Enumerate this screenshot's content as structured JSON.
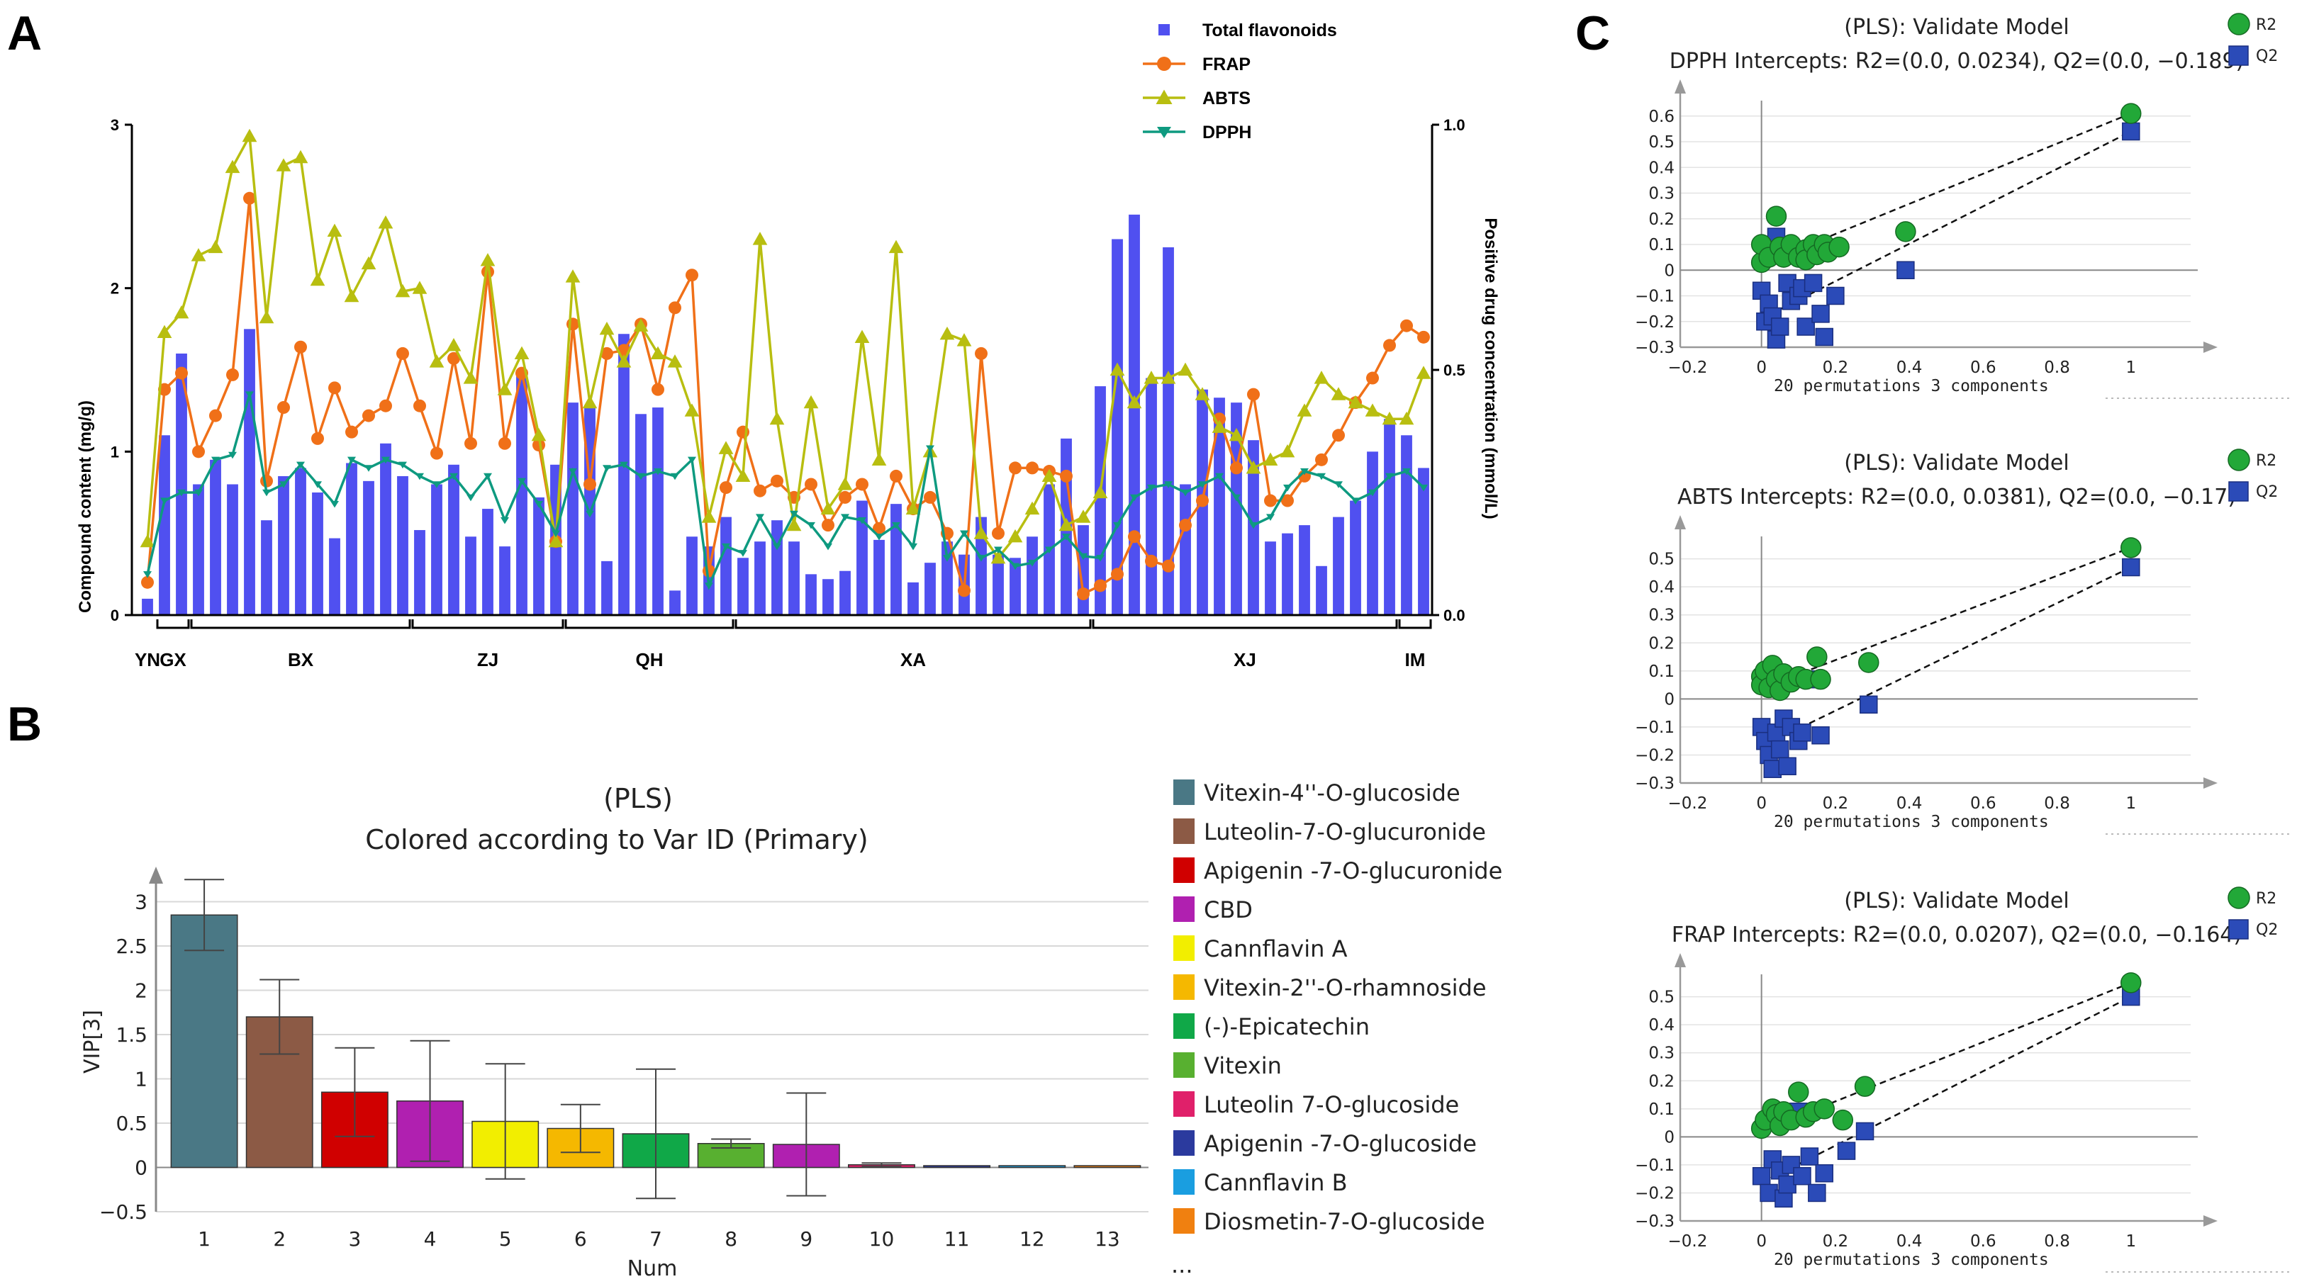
{
  "panel_labels": [
    "A",
    "B",
    "C"
  ],
  "chart_data": [
    {
      "type": "bar+line",
      "panel": "A",
      "ylabel": "Compound content (mg/g)",
      "ylabel_right": "Positive drug concentration (mmol/L)",
      "y_ticks": [
        "0",
        "1",
        "2",
        "3"
      ],
      "y_right_ticks": [
        "0.0",
        "0.5",
        "1.0"
      ],
      "ylim": [
        0,
        3
      ],
      "ylim_right": [
        0,
        1
      ],
      "legend": [
        {
          "name": "Total flavonoids",
          "color": "#5050F0",
          "marker": "square"
        },
        {
          "name": "FRAP",
          "color": "#F07018",
          "marker": "circle"
        },
        {
          "name": "ABTS",
          "color": "#B8BE10",
          "marker": "triangle"
        },
        {
          "name": "DPPH",
          "color": "#0E9A80",
          "marker": "triangle-down"
        }
      ],
      "groups": [
        {
          "name": "YN",
          "from": 1,
          "to": 1
        },
        {
          "name": "GX",
          "from": 2,
          "to": 3
        },
        {
          "name": "BX",
          "from": 4,
          "to": 16
        },
        {
          "name": "ZJ",
          "from": 17,
          "to": 25
        },
        {
          "name": "QH",
          "from": 26,
          "to": 35
        },
        {
          "name": "XA",
          "from": 36,
          "to": 56
        },
        {
          "name": "XJ",
          "from": 57,
          "to": 74
        },
        {
          "name": "IM",
          "from": 75,
          "to": 76
        }
      ],
      "series": [
        {
          "name": "Total flavonoids",
          "axis": "left",
          "values": [
            0.1,
            1.1,
            1.6,
            0.8,
            0.95,
            0.8,
            1.75,
            0.58,
            0.85,
            0.9,
            0.75,
            0.47,
            0.93,
            0.82,
            1.05,
            0.85,
            0.52,
            0.8,
            0.92,
            0.48,
            0.65,
            0.42,
            1.5,
            0.72,
            0.92,
            1.3,
            1.28,
            0.33,
            1.72,
            1.23,
            1.27,
            0.15,
            0.48,
            0.42,
            0.6,
            0.35,
            0.45,
            0.58,
            0.45,
            0.25,
            0.22,
            0.27,
            0.7,
            0.46,
            0.68,
            0.2,
            0.32,
            0.45,
            0.37,
            0.6,
            0.37,
            0.35,
            0.48,
            0.8,
            1.08,
            0.55,
            1.4,
            2.3,
            2.45,
            1.45,
            2.25,
            0.8,
            1.38,
            1.33,
            1.3,
            1.07,
            0.45,
            0.5,
            0.55,
            0.3,
            0.6,
            0.7,
            1.0,
            1.2,
            1.1,
            0.9
          ]
        },
        {
          "name": "FRAP",
          "axis": "left",
          "values": [
            0.2,
            1.38,
            1.48,
            1.0,
            1.22,
            1.47,
            2.55,
            0.82,
            1.27,
            1.64,
            1.08,
            1.39,
            1.12,
            1.22,
            1.28,
            1.6,
            1.28,
            0.99,
            1.57,
            1.05,
            2.1,
            1.05,
            1.48,
            1.04,
            0.45,
            1.78,
            0.8,
            1.6,
            1.62,
            1.78,
            1.38,
            1.88,
            2.08,
            0.27,
            0.78,
            1.12,
            0.76,
            0.82,
            0.72,
            0.8,
            0.55,
            0.72,
            0.8,
            0.53,
            0.85,
            0.65,
            0.72,
            0.5,
            0.15,
            1.6,
            0.5,
            0.9,
            0.9,
            0.88,
            0.85,
            0.13,
            0.18,
            0.25,
            0.48,
            0.33,
            0.3,
            0.55,
            0.7,
            1.2,
            0.9,
            1.35,
            0.7,
            0.7,
            0.85,
            0.95,
            1.1,
            1.3,
            1.45,
            1.65,
            1.77,
            1.7
          ]
        },
        {
          "name": "ABTS",
          "axis": "left",
          "values": [
            0.45,
            1.73,
            1.85,
            2.2,
            2.25,
            2.74,
            2.93,
            1.82,
            2.75,
            2.8,
            2.05,
            2.35,
            1.95,
            2.15,
            2.4,
            1.98,
            2.0,
            1.55,
            1.65,
            1.45,
            2.17,
            1.38,
            1.6,
            1.1,
            0.45,
            2.07,
            1.3,
            1.75,
            1.55,
            1.77,
            1.6,
            1.55,
            1.25,
            0.6,
            1.02,
            0.85,
            2.3,
            1.2,
            0.55,
            1.3,
            0.65,
            0.8,
            1.7,
            0.95,
            2.25,
            0.65,
            1.0,
            1.72,
            1.68,
            0.5,
            0.35,
            0.48,
            0.65,
            0.85,
            0.55,
            0.6,
            0.75,
            1.5,
            1.3,
            1.45,
            1.45,
            1.5,
            1.35,
            1.15,
            1.1,
            0.9,
            0.95,
            1.0,
            1.25,
            1.45,
            1.35,
            1.3,
            1.25,
            1.2,
            1.2,
            1.48
          ]
        },
        {
          "name": "DPPH",
          "axis": "left",
          "values": [
            0.25,
            0.7,
            0.75,
            0.75,
            0.95,
            0.98,
            1.35,
            0.75,
            0.8,
            0.92,
            0.8,
            0.68,
            0.95,
            0.9,
            0.95,
            0.92,
            0.85,
            0.8,
            0.85,
            0.72,
            0.85,
            0.58,
            0.82,
            0.68,
            0.5,
            0.88,
            0.62,
            0.9,
            0.92,
            0.85,
            0.88,
            0.85,
            0.95,
            0.18,
            0.42,
            0.38,
            0.6,
            0.42,
            0.62,
            0.55,
            0.42,
            0.6,
            0.58,
            0.48,
            0.55,
            0.42,
            1.02,
            0.35,
            0.5,
            0.35,
            0.4,
            0.3,
            0.32,
            0.4,
            0.48,
            0.36,
            0.35,
            0.55,
            0.72,
            0.78,
            0.8,
            0.75,
            0.8,
            0.85,
            0.72,
            0.55,
            0.6,
            0.78,
            0.88,
            0.85,
            0.8,
            0.7,
            0.75,
            0.85,
            0.88,
            0.78
          ]
        }
      ]
    },
    {
      "type": "bar",
      "panel": "B",
      "title": "(PLS)",
      "subtitle": "Colored according to Var ID (Primary)",
      "xlabel": "Num",
      "ylabel": "VIP[3]",
      "ylim": [
        -0.5,
        3.3
      ],
      "y_ticks": [
        "3",
        "2.5",
        "2",
        "1.5",
        "1",
        "0.5",
        "0",
        "−0.5"
      ],
      "categories": [
        "1",
        "2",
        "3",
        "4",
        "5",
        "6",
        "7",
        "8",
        "9",
        "10",
        "11",
        "12",
        "13"
      ],
      "values": [
        2.85,
        1.7,
        0.85,
        0.75,
        0.52,
        0.44,
        0.38,
        0.27,
        0.26,
        0.03,
        0.02,
        0.02,
        0.02
      ],
      "error": [
        0.4,
        0.42,
        0.5,
        0.68,
        0.65,
        0.27,
        0.73,
        0.05,
        0.58,
        0.02,
        0.01,
        0.01,
        0.01
      ],
      "colors": [
        "#4A7885",
        "#8C5A45",
        "#D00000",
        "#B020B0",
        "#F2EE00",
        "#F5B800",
        "#10A848",
        "#58B030",
        "#B020B0",
        "#E0206A",
        "#2B3A9E",
        "#1A9EE0",
        "#F08010"
      ],
      "legend": [
        {
          "name": "Vitexin-4''-O-glucoside",
          "color": "#4A7885"
        },
        {
          "name": "Luteolin-7-O-glucuronide",
          "color": "#8C5A45"
        },
        {
          "name": "Apigenin -7-O-glucuronide",
          "color": "#D00000"
        },
        {
          "name": "CBD",
          "color": "#B020B0"
        },
        {
          "name": "Cannflavin A",
          "color": "#F2EE00"
        },
        {
          "name": "Vitexin-2''-O-rhamnoside",
          "color": "#F5B800"
        },
        {
          "name": "(-)-Epicatechin",
          "color": "#10A848"
        },
        {
          "name": "Vitexin",
          "color": "#58B030"
        },
        {
          "name": "Luteolin 7-O-glucoside",
          "color": "#E0206A"
        },
        {
          "name": "Apigenin -7-O-glucoside",
          "color": "#2B3A9E"
        },
        {
          "name": "Cannflavin B",
          "color": "#1A9EE0"
        },
        {
          "name": "Diosmetin-7-O-glucoside",
          "color": "#F08010"
        }
      ],
      "legend_more": "..."
    },
    {
      "type": "scatter",
      "panel": "C1",
      "title": "(PLS): Validate Model",
      "subtitle": "DPPH Intercepts: R2=(0.0, 0.0234), Q2=(0.0, −0.189)",
      "xlabel": "20 permutations 3 components",
      "x_ticks": [
        "−0.2",
        "0",
        "0.2",
        "0.4",
        "0.6",
        "0.8",
        "1"
      ],
      "y_ticks": [
        "0.6",
        "0.5",
        "0.4",
        "0.3",
        "0.2",
        "0.1",
        "0",
        "−0.1",
        "−0.2",
        "−0.3"
      ],
      "xlim": [
        -0.22,
        1.2
      ],
      "ylim": [
        -0.3,
        0.66
      ],
      "legend": [
        {
          "name": "R2",
          "color": "#22A838"
        },
        {
          "name": "Q2",
          "color": "#2B4BB8"
        }
      ],
      "R2": [
        [
          0.0,
          0.03
        ],
        [
          0.0,
          0.1
        ],
        [
          0.02,
          0.05
        ],
        [
          0.04,
          0.21
        ],
        [
          0.05,
          0.09
        ],
        [
          0.06,
          0.05
        ],
        [
          0.08,
          0.1
        ],
        [
          0.1,
          0.05
        ],
        [
          0.12,
          0.08
        ],
        [
          0.12,
          0.04
        ],
        [
          0.14,
          0.1
        ],
        [
          0.15,
          0.06
        ],
        [
          0.17,
          0.1
        ],
        [
          0.18,
          0.07
        ],
        [
          0.21,
          0.09
        ],
        [
          0.39,
          0.15
        ],
        [
          1.0,
          0.61
        ]
      ],
      "Q2": [
        [
          0.0,
          -0.08
        ],
        [
          0.01,
          -0.2
        ],
        [
          0.02,
          -0.13
        ],
        [
          0.03,
          -0.18
        ],
        [
          0.04,
          0.13
        ],
        [
          0.04,
          -0.27
        ],
        [
          0.05,
          -0.22
        ],
        [
          0.07,
          -0.05
        ],
        [
          0.08,
          -0.12
        ],
        [
          0.1,
          -0.1
        ],
        [
          0.11,
          -0.07
        ],
        [
          0.12,
          -0.22
        ],
        [
          0.14,
          -0.05
        ],
        [
          0.16,
          -0.17
        ],
        [
          0.17,
          -0.26
        ],
        [
          0.2,
          -0.1
        ],
        [
          0.39,
          0.0
        ],
        [
          1.0,
          0.54
        ]
      ],
      "R2_intercept": [
        0.0,
        0.0234
      ],
      "Q2_intercept": [
        0.0,
        -0.189
      ]
    },
    {
      "type": "scatter",
      "panel": "C2",
      "title": "(PLS): Validate Model",
      "subtitle": "ABTS Intercepts: R2=(0.0, 0.0381), Q2=(0.0, −0.17)",
      "xlabel": "20 permutations 3 components",
      "x_ticks": [
        "−0.2",
        "0",
        "0.2",
        "0.4",
        "0.6",
        "0.8",
        "1"
      ],
      "y_ticks": [
        "0.5",
        "0.4",
        "0.3",
        "0.2",
        "0.1",
        "0",
        "−0.1",
        "−0.2",
        "−0.3"
      ],
      "xlim": [
        -0.22,
        1.2
      ],
      "ylim": [
        -0.3,
        0.58
      ],
      "legend": [
        {
          "name": "R2",
          "color": "#22A838"
        },
        {
          "name": "Q2",
          "color": "#2B4BB8"
        }
      ],
      "R2": [
        [
          0.0,
          0.08
        ],
        [
          0.0,
          0.05
        ],
        [
          0.01,
          0.1
        ],
        [
          0.02,
          0.04
        ],
        [
          0.03,
          0.12
        ],
        [
          0.04,
          0.07
        ],
        [
          0.05,
          0.03
        ],
        [
          0.06,
          0.09
        ],
        [
          0.08,
          0.06
        ],
        [
          0.1,
          0.08
        ],
        [
          0.12,
          0.07
        ],
        [
          0.15,
          0.15
        ],
        [
          0.16,
          0.07
        ],
        [
          0.29,
          0.13
        ],
        [
          1.0,
          0.54
        ]
      ],
      "Q2": [
        [
          0.0,
          -0.1
        ],
        [
          0.01,
          -0.15
        ],
        [
          0.02,
          -0.2
        ],
        [
          0.03,
          -0.25
        ],
        [
          0.04,
          -0.12
        ],
        [
          0.05,
          -0.18
        ],
        [
          0.06,
          -0.07
        ],
        [
          0.07,
          -0.24
        ],
        [
          0.08,
          -0.1
        ],
        [
          0.1,
          -0.15
        ],
        [
          0.11,
          -0.12
        ],
        [
          0.14,
          0.07
        ],
        [
          0.16,
          -0.13
        ],
        [
          0.29,
          -0.02
        ],
        [
          1.0,
          0.47
        ]
      ],
      "R2_intercept": [
        0.0,
        0.0381
      ],
      "Q2_intercept": [
        0.0,
        -0.17
      ]
    },
    {
      "type": "scatter",
      "panel": "C3",
      "title": "(PLS): Validate Model",
      "subtitle": "FRAP Intercepts: R2=(0.0, 0.0207), Q2=(0.0, −0.164)",
      "xlabel": "20 permutations 3 components",
      "x_ticks": [
        "−0.2",
        "0",
        "0.2",
        "0.4",
        "0.6",
        "0.8",
        "1"
      ],
      "y_ticks": [
        "0.5",
        "0.4",
        "0.3",
        "0.2",
        "0.1",
        "0",
        "−0.1",
        "−0.2",
        "−0.3"
      ],
      "xlim": [
        -0.22,
        1.2
      ],
      "ylim": [
        -0.3,
        0.58
      ],
      "legend": [
        {
          "name": "R2",
          "color": "#22A838"
        },
        {
          "name": "Q2",
          "color": "#2B4BB8"
        }
      ],
      "R2": [
        [
          0.0,
          0.03
        ],
        [
          0.01,
          0.06
        ],
        [
          0.03,
          0.1
        ],
        [
          0.04,
          0.08
        ],
        [
          0.05,
          0.04
        ],
        [
          0.06,
          0.09
        ],
        [
          0.08,
          0.06
        ],
        [
          0.1,
          0.16
        ],
        [
          0.12,
          0.07
        ],
        [
          0.14,
          0.09
        ],
        [
          0.17,
          0.1
        ],
        [
          0.22,
          0.06
        ],
        [
          0.28,
          0.18
        ],
        [
          1.0,
          0.55
        ]
      ],
      "Q2": [
        [
          0.0,
          -0.14
        ],
        [
          0.02,
          -0.2
        ],
        [
          0.03,
          -0.08
        ],
        [
          0.05,
          -0.12
        ],
        [
          0.06,
          -0.22
        ],
        [
          0.07,
          -0.17
        ],
        [
          0.08,
          -0.1
        ],
        [
          0.1,
          0.09
        ],
        [
          0.11,
          -0.14
        ],
        [
          0.13,
          -0.07
        ],
        [
          0.15,
          -0.2
        ],
        [
          0.17,
          -0.13
        ],
        [
          0.23,
          -0.05
        ],
        [
          0.28,
          0.02
        ],
        [
          1.0,
          0.5
        ]
      ],
      "R2_intercept": [
        0.0,
        0.0207
      ],
      "Q2_intercept": [
        0.0,
        -0.164
      ]
    }
  ]
}
